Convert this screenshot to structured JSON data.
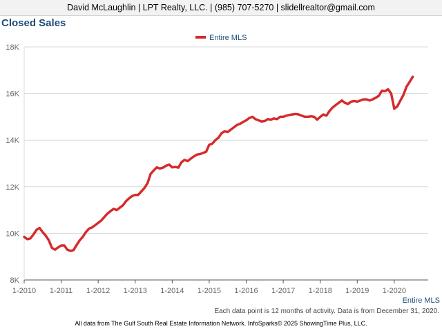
{
  "header": {
    "contact": "David McLaughlin | LPT Realty, LLC. | (985) 707-5270 | slidellrealtor@gmail.com"
  },
  "footer": {
    "note": "Each data point is 12 months of activity. Data is from December 31, 2020.",
    "credit": "All data from The Gulf South Real Estate Information Network. InfoSparks© 2025 ShowingTime Plus, LLC."
  },
  "chart_data": {
    "type": "line",
    "title": "Closed Sales",
    "x_axis_label": "Entire MLS",
    "legend_placement": "top-center",
    "grid": true,
    "ylim": [
      8000,
      18000
    ],
    "xlim": [
      "2010-01",
      "2020-12"
    ],
    "y_ticks": [
      "8K",
      "10K",
      "12K",
      "14K",
      "16K",
      "18K"
    ],
    "y_tick_values": [
      8000,
      10000,
      12000,
      14000,
      16000,
      18000
    ],
    "x_ticks": [
      "1-2010",
      "1-2011",
      "1-2012",
      "1-2013",
      "1-2014",
      "1-2015",
      "1-2016",
      "1-2017",
      "1-2018",
      "1-2019",
      "1-2020"
    ],
    "x_tick_values": [
      "2010-01",
      "2011-01",
      "2012-01",
      "2013-01",
      "2014-01",
      "2015-01",
      "2016-01",
      "2017-01",
      "2018-01",
      "2019-01",
      "2020-01"
    ],
    "series": [
      {
        "name": "Entire MLS",
        "color": "#d62b2b",
        "points": [
          [
            "2010-01",
            9850
          ],
          [
            "2010-02",
            9750
          ],
          [
            "2010-03",
            9780
          ],
          [
            "2010-04",
            9950
          ],
          [
            "2010-05",
            10150
          ],
          [
            "2010-06",
            10230
          ],
          [
            "2010-07",
            10050
          ],
          [
            "2010-08",
            9900
          ],
          [
            "2010-09",
            9700
          ],
          [
            "2010-10",
            9380
          ],
          [
            "2010-11",
            9300
          ],
          [
            "2010-12",
            9400
          ],
          [
            "2011-01",
            9480
          ],
          [
            "2011-02",
            9480
          ],
          [
            "2011-03",
            9300
          ],
          [
            "2011-04",
            9250
          ],
          [
            "2011-05",
            9280
          ],
          [
            "2011-06",
            9500
          ],
          [
            "2011-07",
            9700
          ],
          [
            "2011-08",
            9850
          ],
          [
            "2011-09",
            10050
          ],
          [
            "2011-10",
            10200
          ],
          [
            "2011-11",
            10250
          ],
          [
            "2011-12",
            10350
          ],
          [
            "2012-01",
            10450
          ],
          [
            "2012-02",
            10550
          ],
          [
            "2012-03",
            10700
          ],
          [
            "2012-04",
            10850
          ],
          [
            "2012-05",
            10950
          ],
          [
            "2012-06",
            11050
          ],
          [
            "2012-07",
            11000
          ],
          [
            "2012-08",
            11100
          ],
          [
            "2012-09",
            11200
          ],
          [
            "2012-10",
            11380
          ],
          [
            "2012-11",
            11500
          ],
          [
            "2012-12",
            11600
          ],
          [
            "2013-01",
            11650
          ],
          [
            "2013-02",
            11650
          ],
          [
            "2013-03",
            11800
          ],
          [
            "2013-04",
            11950
          ],
          [
            "2013-05",
            12150
          ],
          [
            "2013-06",
            12550
          ],
          [
            "2013-07",
            12700
          ],
          [
            "2013-08",
            12830
          ],
          [
            "2013-09",
            12780
          ],
          [
            "2013-10",
            12820
          ],
          [
            "2013-11",
            12900
          ],
          [
            "2013-12",
            12950
          ],
          [
            "2014-01",
            12830
          ],
          [
            "2014-02",
            12850
          ],
          [
            "2014-03",
            12820
          ],
          [
            "2014-04",
            13050
          ],
          [
            "2014-05",
            13150
          ],
          [
            "2014-06",
            13100
          ],
          [
            "2014-07",
            13200
          ],
          [
            "2014-08",
            13300
          ],
          [
            "2014-09",
            13380
          ],
          [
            "2014-10",
            13400
          ],
          [
            "2014-11",
            13450
          ],
          [
            "2014-12",
            13500
          ],
          [
            "2015-01",
            13800
          ],
          [
            "2015-02",
            13850
          ],
          [
            "2015-03",
            14000
          ],
          [
            "2015-04",
            14100
          ],
          [
            "2015-05",
            14300
          ],
          [
            "2015-06",
            14380
          ],
          [
            "2015-07",
            14350
          ],
          [
            "2015-08",
            14450
          ],
          [
            "2015-09",
            14550
          ],
          [
            "2015-10",
            14650
          ],
          [
            "2015-11",
            14700
          ],
          [
            "2015-12",
            14780
          ],
          [
            "2016-01",
            14850
          ],
          [
            "2016-02",
            14950
          ],
          [
            "2016-03",
            15000
          ],
          [
            "2016-04",
            14900
          ],
          [
            "2016-05",
            14850
          ],
          [
            "2016-06",
            14800
          ],
          [
            "2016-07",
            14820
          ],
          [
            "2016-08",
            14900
          ],
          [
            "2016-09",
            14880
          ],
          [
            "2016-10",
            14930
          ],
          [
            "2016-11",
            14900
          ],
          [
            "2016-12",
            15000
          ],
          [
            "2017-01",
            15000
          ],
          [
            "2017-02",
            15050
          ],
          [
            "2017-03",
            15080
          ],
          [
            "2017-04",
            15100
          ],
          [
            "2017-05",
            15120
          ],
          [
            "2017-06",
            15100
          ],
          [
            "2017-07",
            15050
          ],
          [
            "2017-08",
            15000
          ],
          [
            "2017-09",
            15000
          ],
          [
            "2017-10",
            15020
          ],
          [
            "2017-11",
            15000
          ],
          [
            "2017-12",
            14880
          ],
          [
            "2018-01",
            15000
          ],
          [
            "2018-02",
            15100
          ],
          [
            "2018-03",
            15050
          ],
          [
            "2018-04",
            15250
          ],
          [
            "2018-05",
            15400
          ],
          [
            "2018-06",
            15500
          ],
          [
            "2018-07",
            15600
          ],
          [
            "2018-08",
            15700
          ],
          [
            "2018-09",
            15600
          ],
          [
            "2018-10",
            15550
          ],
          [
            "2018-11",
            15650
          ],
          [
            "2018-12",
            15680
          ],
          [
            "2019-01",
            15650
          ],
          [
            "2019-02",
            15700
          ],
          [
            "2019-03",
            15750
          ],
          [
            "2019-04",
            15750
          ],
          [
            "2019-05",
            15700
          ],
          [
            "2019-06",
            15750
          ],
          [
            "2019-07",
            15820
          ],
          [
            "2019-08",
            15900
          ],
          [
            "2019-09",
            16120
          ],
          [
            "2019-10",
            16100
          ],
          [
            "2019-11",
            16180
          ],
          [
            "2019-12",
            16000
          ],
          [
            "2020-01",
            15350
          ],
          [
            "2020-02",
            15450
          ],
          [
            "2020-03",
            15700
          ],
          [
            "2020-04",
            15950
          ],
          [
            "2020-05",
            16300
          ],
          [
            "2020-06",
            16500
          ],
          [
            "2020-07",
            16720
          ]
        ]
      }
    ]
  }
}
